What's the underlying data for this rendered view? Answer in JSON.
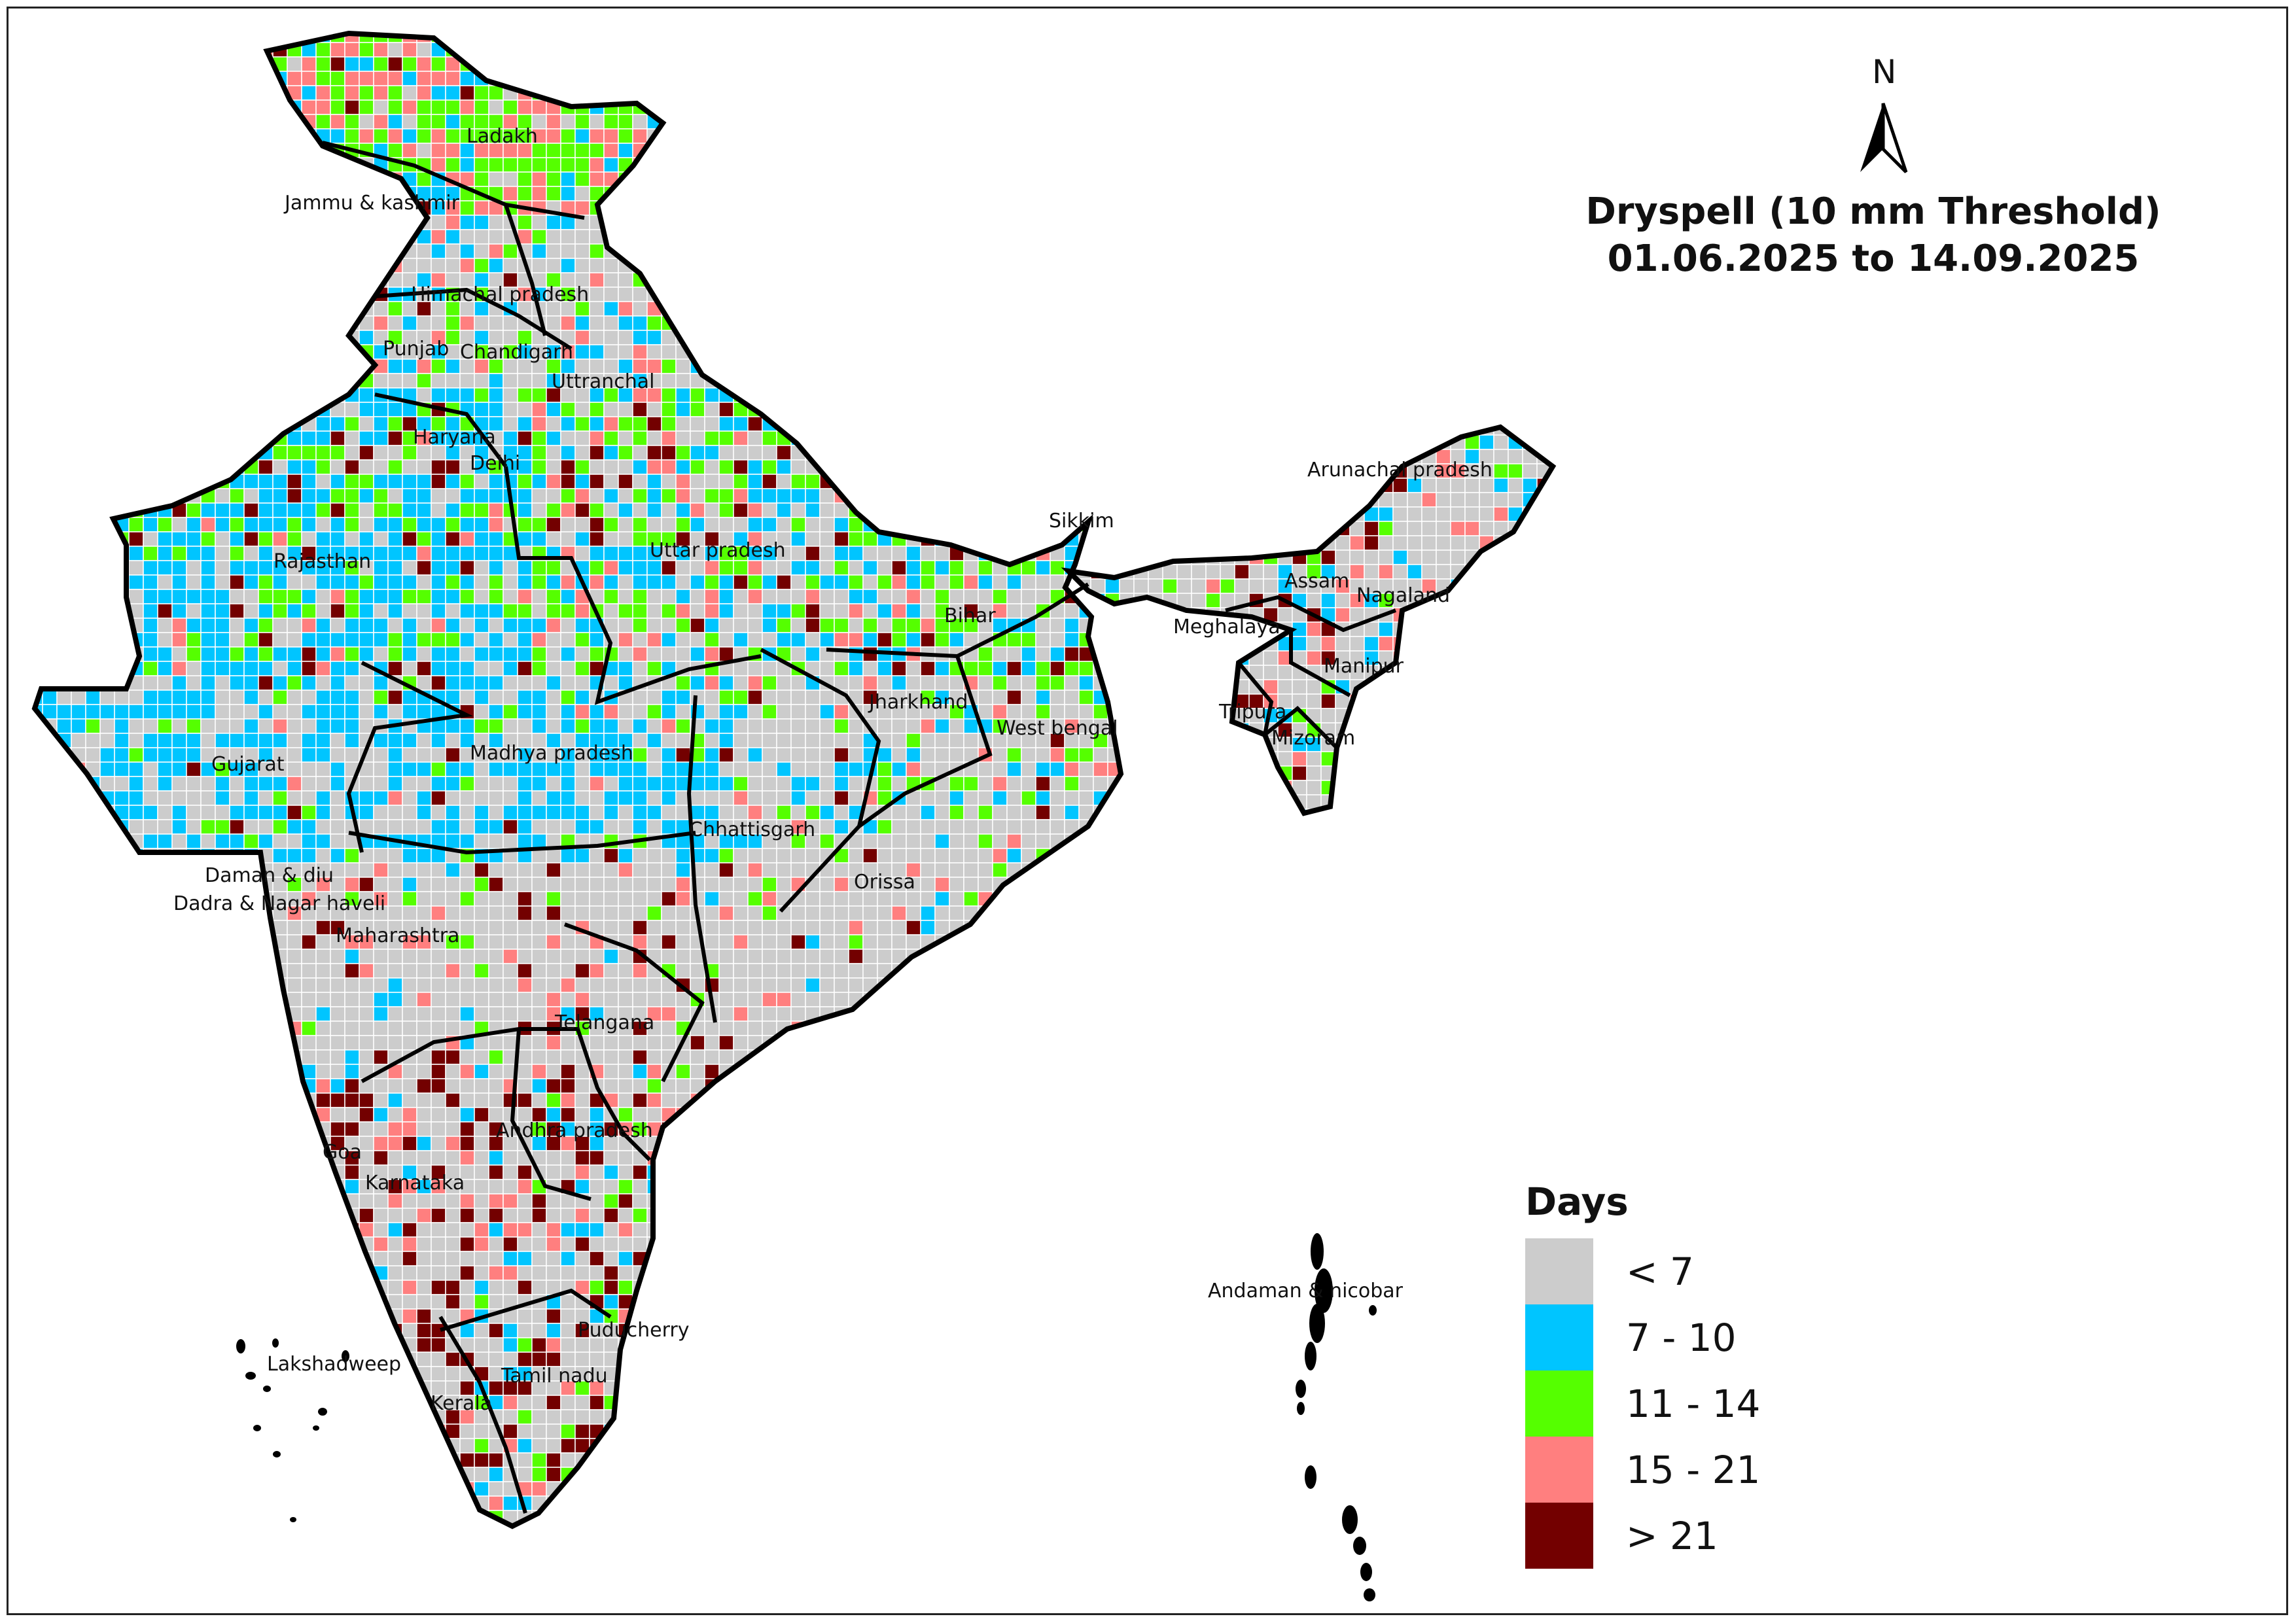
{
  "title": {
    "line1": "Dryspell (10 mm Threshold)",
    "line2": "01.06.2025 to 14.09.2025"
  },
  "north_arrow": {
    "label": "N",
    "icon": "north-arrow-icon"
  },
  "legend": {
    "title": "Days",
    "classes": [
      {
        "label": "< 7",
        "color": "#cccccc"
      },
      {
        "label": "7 - 10",
        "color": "#00c5ff"
      },
      {
        "label": "11 - 14",
        "color": "#55ff00"
      },
      {
        "label": "15 - 21",
        "color": "#ff7f7f"
      },
      {
        "label": "> 21",
        "color": "#730000"
      }
    ]
  },
  "regions": [
    "Ladakh",
    "Jammu & kashmir",
    "Himachal pradesh",
    "Punjab",
    "Chandigarh",
    "Uttranchal",
    "Haryana",
    "Delhi",
    "Rajasthan",
    "Uttar pradesh",
    "Sikkim",
    "Arunachal pradesh",
    "Assam",
    "Nagaland",
    "Bihar",
    "Meghalaya",
    "Manipur",
    "Jharkhand",
    "West bengal",
    "Tripura",
    "Mizoram",
    "Gujarat",
    "Madhya pradesh",
    "Chhattisgarh",
    "Orissa",
    "Daman & diu",
    "Dadra & Nagar haveli",
    "Maharashtra",
    "Telangana",
    "Andhra pradesh",
    "Goa",
    "Karnataka",
    "Andaman & nicobar",
    "Puducherry",
    "Lakshadweep",
    "Tamil nadu",
    "Kerala"
  ]
}
